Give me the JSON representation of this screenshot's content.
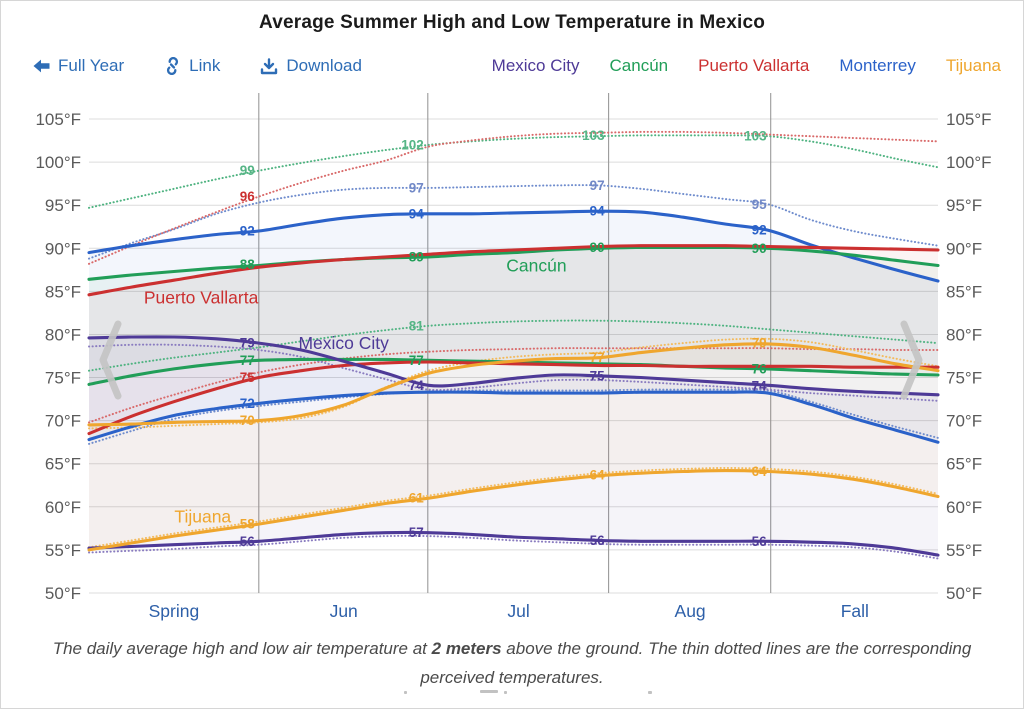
{
  "title": "Average Summer High and Low Temperature in Mexico",
  "toolbar": {
    "full_year_label": "Full Year",
    "link_label": "Link",
    "download_label": "Download",
    "link_color": "#2e6db6"
  },
  "legend": [
    {
      "label": "Mexico City",
      "color": "#4e3a97"
    },
    {
      "label": "Cancún",
      "color": "#219e58"
    },
    {
      "label": "Puerto Vallarta",
      "color": "#cb3030"
    },
    {
      "label": "Monterrey",
      "color": "#2b62c9"
    },
    {
      "label": "Tijuana",
      "color": "#efa62e"
    }
  ],
  "palette": {
    "blue": "#2b62c9",
    "blue_muted": "#7289c7",
    "green": "#219e58",
    "green_muted": "#56b586",
    "red": "#cb3030",
    "purple": "#4e3a97",
    "orange": "#efa62e",
    "axis_text": "#5a5a5a",
    "season_text": "#2d5fa8",
    "grid": "#dcdcdc",
    "boundary": "#9a9a9a",
    "chevron": "#c4c4c4"
  },
  "caption": {
    "prefix": "The daily average high and low air temperature at ",
    "emphasis": "2 meters",
    "suffix": " above the ground. The thin dotted lines are the corresponding perceived temperatures."
  },
  "chart_data": {
    "type": "line",
    "title": "Average Summer High and Low Temperature in Mexico",
    "y_unit": "°F",
    "ylim": [
      50,
      107
    ],
    "y_ticks": [
      105,
      100,
      95,
      90,
      85,
      80,
      75,
      70,
      65,
      60,
      55,
      50
    ],
    "season_boundaries": [
      0.2,
      0.399,
      0.612,
      0.803
    ],
    "x_axis_labels": [
      {
        "text": "Spring",
        "x": 0.1
      },
      {
        "text": "Jun",
        "x": 0.3
      },
      {
        "text": "Jul",
        "x": 0.506
      },
      {
        "text": "Aug",
        "x": 0.708
      },
      {
        "text": "Fall",
        "x": 0.902
      }
    ],
    "x": [
      0,
      0.05,
      0.1,
      0.15,
      0.2,
      0.25,
      0.3,
      0.35,
      0.4,
      0.45,
      0.5,
      0.55,
      0.6,
      0.65,
      0.7,
      0.75,
      0.8,
      0.85,
      0.9,
      0.95,
      1
    ],
    "cities": [
      {
        "id": "monterrey",
        "name": "Monterrey",
        "color": "#2b62c9",
        "dot_color": "#6f8ccd",
        "high": [
          89.5,
          90.3,
          91.0,
          91.6,
          92.0,
          92.8,
          93.5,
          93.9,
          94.0,
          94.0,
          94.1,
          94.2,
          94.3,
          94.2,
          93.6,
          92.8,
          92.1,
          90.4,
          88.9,
          87.5,
          86.2
        ],
        "low": [
          67.8,
          69.3,
          70.6,
          71.4,
          72.0,
          72.5,
          72.9,
          73.2,
          73.3,
          73.3,
          73.2,
          73.2,
          73.2,
          73.3,
          73.3,
          73.3,
          73.2,
          71.9,
          70.3,
          68.9,
          67.5
        ],
        "perceived_high": [
          88.8,
          90.6,
          92.2,
          94.0,
          95.3,
          96.2,
          96.8,
          97.0,
          97.0,
          97.1,
          97.2,
          97.3,
          97.3,
          96.9,
          96.3,
          95.7,
          95.1,
          93.3,
          92.0,
          91.1,
          90.3
        ],
        "perceived_low": [
          67.3,
          68.8,
          70.2,
          71.1,
          71.7,
          72.2,
          72.7,
          73.1,
          73.4,
          73.5,
          73.5,
          73.5,
          73.5,
          73.6,
          73.6,
          73.6,
          73.5,
          72.2,
          70.7,
          69.3,
          68.0
        ]
      },
      {
        "id": "cancun",
        "name": "Cancún",
        "color": "#219e58",
        "dot_color": "#4fb381",
        "high": [
          86.4,
          86.9,
          87.3,
          87.7,
          88.0,
          88.4,
          88.7,
          88.9,
          89.0,
          89.3,
          89.5,
          89.8,
          90.0,
          90.1,
          90.1,
          90.1,
          90.0,
          89.7,
          89.2,
          88.6,
          88.0
        ],
        "low": [
          74.2,
          75.2,
          76.0,
          76.6,
          77.0,
          77.1,
          77.1,
          77.1,
          77.0,
          76.9,
          76.8,
          76.7,
          76.6,
          76.5,
          76.3,
          76.1,
          76.0,
          75.8,
          75.6,
          75.4,
          75.3
        ],
        "perceived_high": [
          94.7,
          95.8,
          96.9,
          98.0,
          99.0,
          99.9,
          100.7,
          101.4,
          102.0,
          102.4,
          102.7,
          102.9,
          103.0,
          103.1,
          103.1,
          103.1,
          103.0,
          102.4,
          101.5,
          100.4,
          99.4
        ],
        "perceived_low": [
          75.8,
          76.6,
          77.3,
          77.9,
          78.5,
          79.2,
          79.9,
          80.5,
          81.0,
          81.3,
          81.5,
          81.6,
          81.6,
          81.5,
          81.3,
          81.0,
          80.6,
          80.2,
          79.8,
          79.4,
          79.0
        ]
      },
      {
        "id": "puerto-vallarta",
        "name": "Puerto Vallarta",
        "color": "#cb3030",
        "dot_color": "#d96a6a",
        "high": [
          84.6,
          85.5,
          86.3,
          87.1,
          87.8,
          88.3,
          88.7,
          89.0,
          89.3,
          89.6,
          89.8,
          90.0,
          90.2,
          90.3,
          90.3,
          90.3,
          90.2,
          90.1,
          90.0,
          89.9,
          89.8
        ],
        "low": [
          68.5,
          70.5,
          72.2,
          73.7,
          75.0,
          75.8,
          76.4,
          76.7,
          76.8,
          76.7,
          76.6,
          76.5,
          76.4,
          76.4,
          76.3,
          76.3,
          76.3,
          76.3,
          76.2,
          76.2,
          76.2
        ],
        "perceived_high": [
          88.2,
          90.3,
          92.3,
          94.2,
          96.0,
          97.6,
          99.0,
          100.2,
          101.8,
          102.5,
          103.0,
          103.3,
          103.4,
          103.5,
          103.5,
          103.4,
          103.2,
          103.0,
          102.8,
          102.6,
          102.4
        ],
        "perceived_low": [
          69.8,
          71.5,
          73.0,
          74.4,
          75.6,
          76.5,
          77.2,
          77.7,
          78.0,
          78.2,
          78.3,
          78.4,
          78.4,
          78.4,
          78.4,
          78.4,
          78.4,
          78.3,
          78.3,
          78.2,
          78.2
        ]
      },
      {
        "id": "mexico-city",
        "name": "Mexico City",
        "color": "#4e3a97",
        "dot_color": "#8a7cc0",
        "high": [
          79.6,
          79.7,
          79.7,
          79.5,
          79.0,
          78.2,
          76.9,
          75.5,
          74.1,
          74.3,
          74.9,
          75.3,
          75.2,
          75.0,
          74.7,
          74.4,
          74.1,
          73.7,
          73.4,
          73.2,
          73.0
        ],
        "low": [
          55.2,
          55.4,
          55.6,
          55.8,
          56.0,
          56.4,
          56.8,
          57.0,
          57.0,
          56.8,
          56.5,
          56.3,
          56.1,
          56.0,
          56.0,
          56.0,
          56.0,
          55.9,
          55.7,
          55.2,
          54.4
        ],
        "perceived_high": [
          78.6,
          78.8,
          78.8,
          78.6,
          78.2,
          77.4,
          76.1,
          74.8,
          73.6,
          73.8,
          74.3,
          74.7,
          74.7,
          74.5,
          74.2,
          73.9,
          73.6,
          73.2,
          72.9,
          72.6,
          72.3
        ],
        "perceived_low": [
          54.7,
          54.9,
          55.1,
          55.4,
          55.6,
          56.0,
          56.4,
          56.6,
          56.6,
          56.4,
          56.1,
          55.9,
          55.7,
          55.6,
          55.6,
          55.6,
          55.6,
          55.5,
          55.3,
          54.8,
          54.0
        ]
      },
      {
        "id": "tijuana",
        "name": "Tijuana",
        "color": "#efa62e",
        "dot_color": "#f3bb5e",
        "high": [
          69.5,
          69.6,
          69.8,
          69.9,
          70.0,
          70.6,
          71.8,
          73.8,
          75.5,
          76.4,
          76.9,
          77.2,
          77.3,
          77.9,
          78.4,
          78.8,
          78.9,
          78.5,
          77.6,
          76.6,
          75.8
        ],
        "low": [
          55.0,
          55.8,
          56.6,
          57.3,
          58.0,
          58.8,
          59.6,
          60.4,
          61.0,
          61.8,
          62.5,
          63.1,
          63.6,
          63.9,
          64.1,
          64.2,
          64.1,
          63.8,
          63.2,
          62.3,
          61.2
        ],
        "perceived_high": [
          69.1,
          69.2,
          69.4,
          69.6,
          69.8,
          70.3,
          71.6,
          73.9,
          75.8,
          76.8,
          77.4,
          77.7,
          77.9,
          78.5,
          79.0,
          79.4,
          79.5,
          79.1,
          78.2,
          77.2,
          76.3
        ],
        "perceived_low": [
          55.3,
          56.1,
          56.9,
          57.6,
          58.3,
          59.1,
          59.9,
          60.7,
          61.3,
          62.1,
          62.8,
          63.4,
          63.9,
          64.2,
          64.4,
          64.5,
          64.4,
          64.1,
          63.5,
          62.6,
          61.5
        ]
      }
    ],
    "annotations": [
      {
        "x": 0.2,
        "t": 99,
        "text": "99",
        "color": "green_muted"
      },
      {
        "x": 0.2,
        "t": 96,
        "text": "96",
        "color": "red"
      },
      {
        "x": 0.2,
        "t": 92,
        "text": "92",
        "color": "blue"
      },
      {
        "x": 0.2,
        "t": 88.1,
        "text": "88",
        "color": "green"
      },
      {
        "x": 0.2,
        "t": 79,
        "text": "79",
        "color": "purple"
      },
      {
        "x": 0.2,
        "t": 77,
        "text": "77",
        "color": "green"
      },
      {
        "x": 0.2,
        "t": 75,
        "text": "75",
        "color": "red"
      },
      {
        "x": 0.2,
        "t": 72,
        "text": "72",
        "color": "blue"
      },
      {
        "x": 0.2,
        "t": 70,
        "text": "70",
        "color": "orange"
      },
      {
        "x": 0.2,
        "t": 58,
        "text": "58",
        "color": "orange"
      },
      {
        "x": 0.2,
        "t": 56,
        "text": "56",
        "color": "purple"
      },
      {
        "x": 0.399,
        "t": 102,
        "text": "102",
        "color": "green_muted"
      },
      {
        "x": 0.399,
        "t": 97,
        "text": "97",
        "color": "blue_muted"
      },
      {
        "x": 0.399,
        "t": 94,
        "text": "94",
        "color": "blue"
      },
      {
        "x": 0.399,
        "t": 89,
        "text": "89",
        "color": "green"
      },
      {
        "x": 0.399,
        "t": 81,
        "text": "81",
        "color": "green_muted"
      },
      {
        "x": 0.399,
        "t": 77,
        "text": "77",
        "color": "green"
      },
      {
        "x": 0.399,
        "t": 74.1,
        "text": "74",
        "color": "purple"
      },
      {
        "x": 0.399,
        "t": 61,
        "text": "61",
        "color": "orange"
      },
      {
        "x": 0.399,
        "t": 57,
        "text": "57",
        "color": "purple"
      },
      {
        "x": 0.612,
        "t": 103.1,
        "text": "103",
        "color": "green_muted"
      },
      {
        "x": 0.612,
        "t": 97.3,
        "text": "97",
        "color": "blue_muted"
      },
      {
        "x": 0.612,
        "t": 94.3,
        "text": "94",
        "color": "blue"
      },
      {
        "x": 0.612,
        "t": 90.1,
        "text": "90",
        "color": "green"
      },
      {
        "x": 0.612,
        "t": 77.3,
        "text": "77",
        "color": "orange"
      },
      {
        "x": 0.612,
        "t": 75.2,
        "text": "75",
        "color": "purple"
      },
      {
        "x": 0.612,
        "t": 63.7,
        "text": "64",
        "color": "orange"
      },
      {
        "x": 0.612,
        "t": 56.1,
        "text": "56",
        "color": "purple"
      },
      {
        "x": 0.803,
        "t": 103,
        "text": "103",
        "color": "green_muted"
      },
      {
        "x": 0.803,
        "t": 95.1,
        "text": "95",
        "color": "blue_muted"
      },
      {
        "x": 0.803,
        "t": 92.1,
        "text": "92",
        "color": "blue"
      },
      {
        "x": 0.803,
        "t": 90,
        "text": "90",
        "color": "green"
      },
      {
        "x": 0.803,
        "t": 79,
        "text": "79",
        "color": "orange"
      },
      {
        "x": 0.803,
        "t": 76,
        "text": "76",
        "color": "green"
      },
      {
        "x": 0.803,
        "t": 74,
        "text": "74",
        "color": "purple"
      },
      {
        "x": 0.803,
        "t": 64.1,
        "text": "64",
        "color": "orange"
      },
      {
        "x": 0.803,
        "t": 56,
        "text": "56",
        "color": "purple"
      }
    ],
    "city_labels": [
      {
        "text": "Puerto Vallarta",
        "x": 0.132,
        "t": 84.3,
        "color": "red"
      },
      {
        "text": "Mexico City",
        "x": 0.3,
        "t": 79.0,
        "color": "purple"
      },
      {
        "text": "Cancún",
        "x": 0.527,
        "t": 88.0,
        "color": "green"
      },
      {
        "text": "Tijuana",
        "x": 0.134,
        "t": 58.9,
        "color": "orange"
      }
    ]
  }
}
